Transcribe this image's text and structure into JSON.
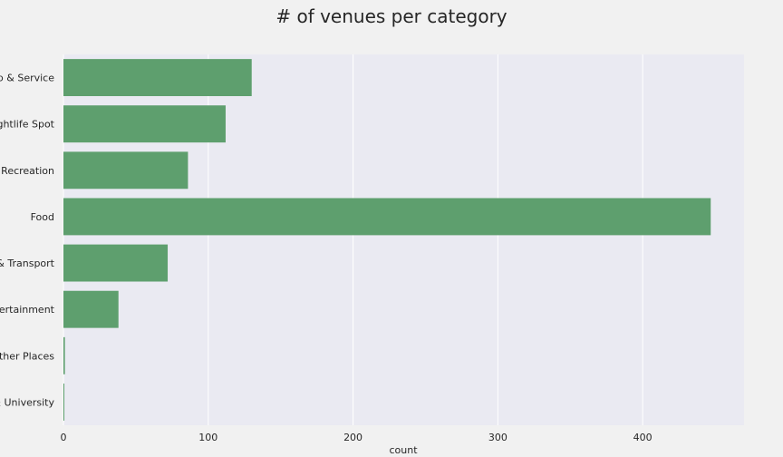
{
  "chart_data": {
    "type": "bar",
    "orientation": "horizontal",
    "title": "# of venues per category",
    "xlabel": "count",
    "ylabel": "",
    "categories": [
      "op & Service",
      "lightlife Spot",
      "& Recreation",
      "Food",
      "& Transport",
      "ntertainment",
      "Other Places",
      "& University"
    ],
    "values": [
      130,
      112,
      86,
      447,
      72,
      38,
      1,
      0.5
    ],
    "xlim": [
      0,
      470
    ],
    "xticks": [
      0,
      100,
      200,
      300,
      400
    ],
    "grid": true,
    "colors": {
      "bar": "#5e9f6e",
      "plot_bg": "#eaeaf2",
      "page_bg": "#f1f1f1",
      "grid": "#ffffff",
      "text": "#262626"
    }
  }
}
